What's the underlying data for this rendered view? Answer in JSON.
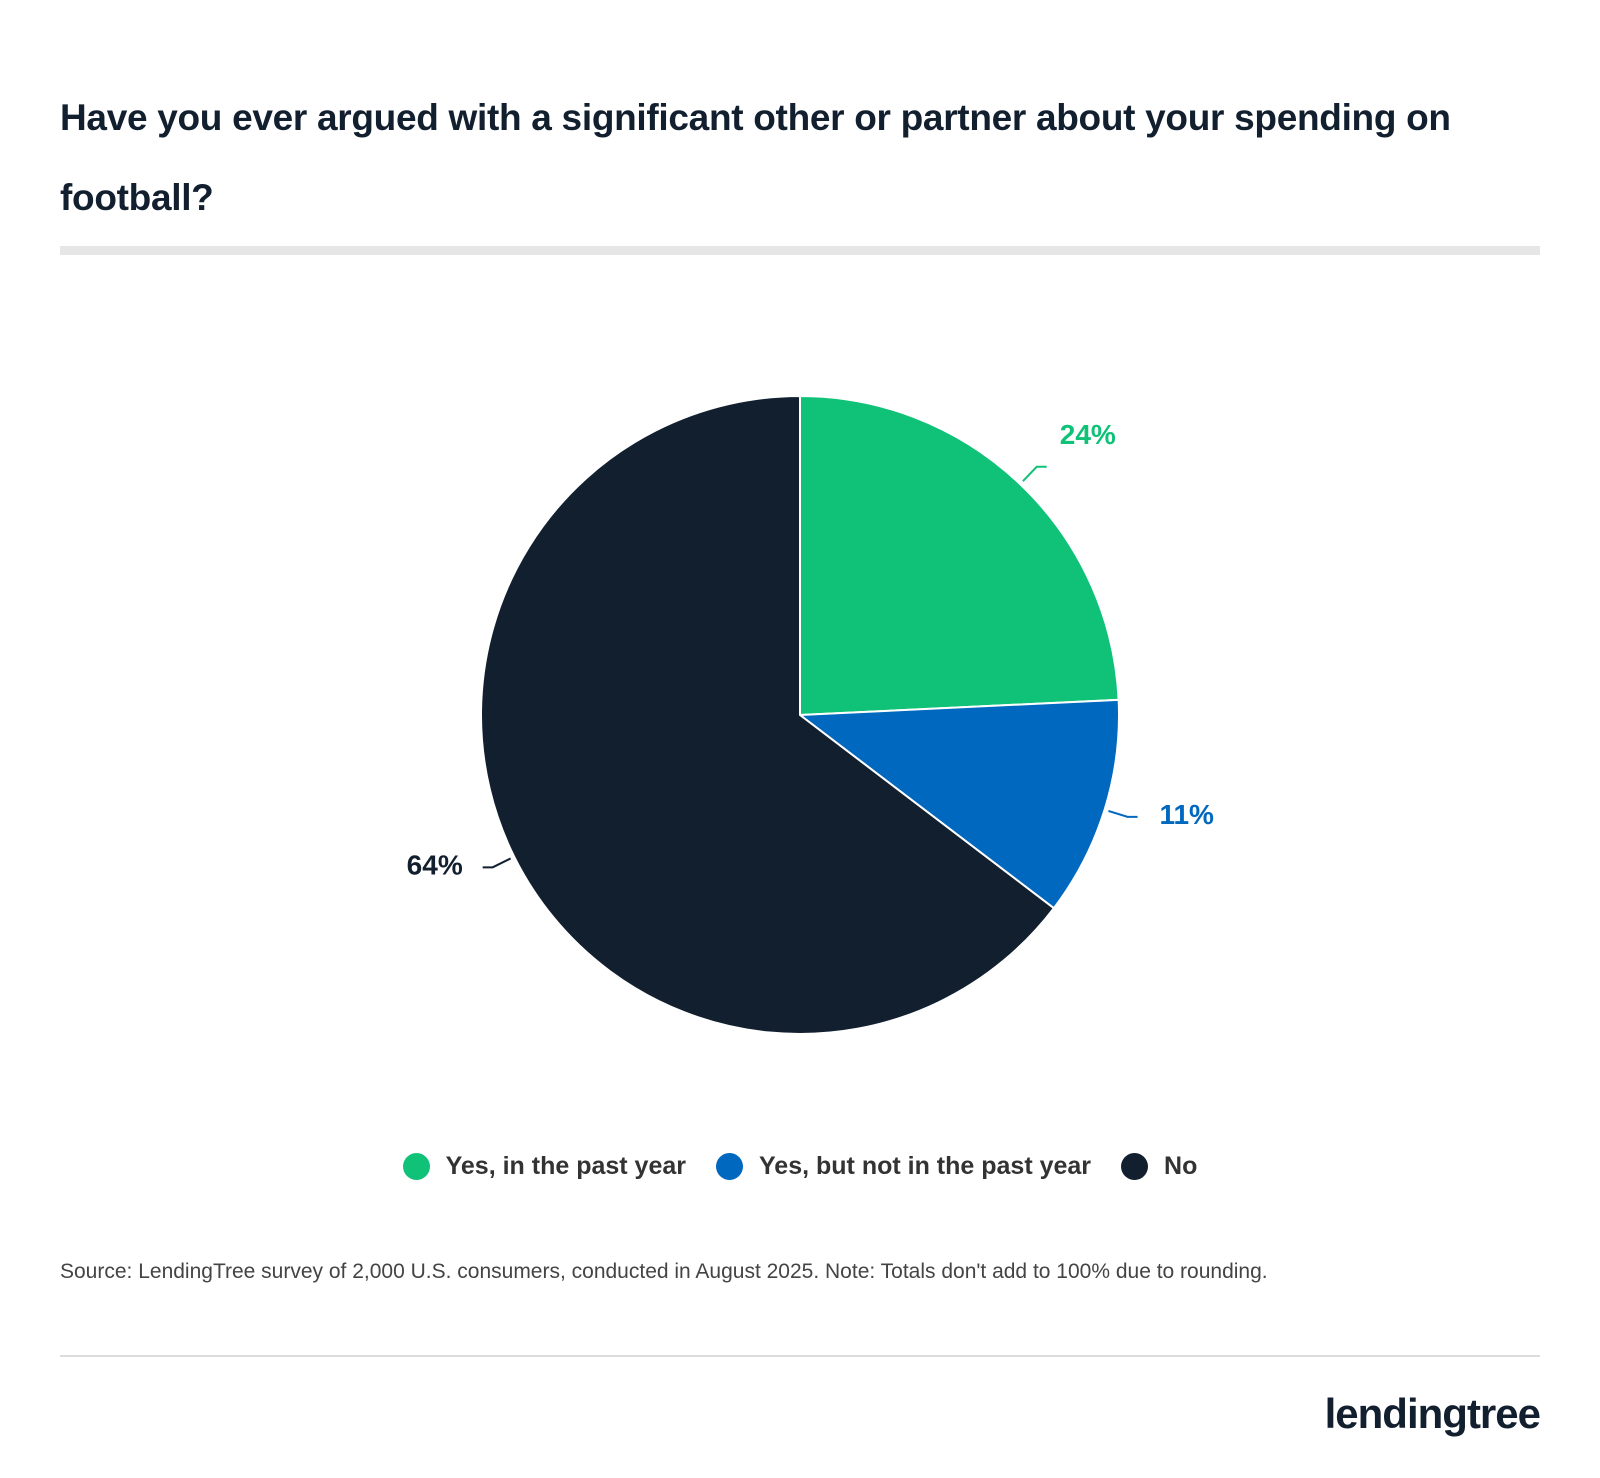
{
  "chart_data": {
    "type": "pie",
    "title": "Have you ever argued with a significant other or partner about your spending on football?",
    "categories": [
      "Yes, in the past year",
      "Yes, but not in the past year",
      "No"
    ],
    "values": [
      24,
      11,
      64
    ],
    "value_labels": [
      "24%",
      "11%",
      "64%"
    ],
    "colors": [
      "#10c278",
      "#0068bf",
      "#121f2f"
    ],
    "legend": "bottom",
    "note": "Source: LendingTree survey of 2,000 U.S. consumers, conducted in August 2025. Note: Totals don't add to 100% due to rounding."
  },
  "brand": "lendingtree"
}
